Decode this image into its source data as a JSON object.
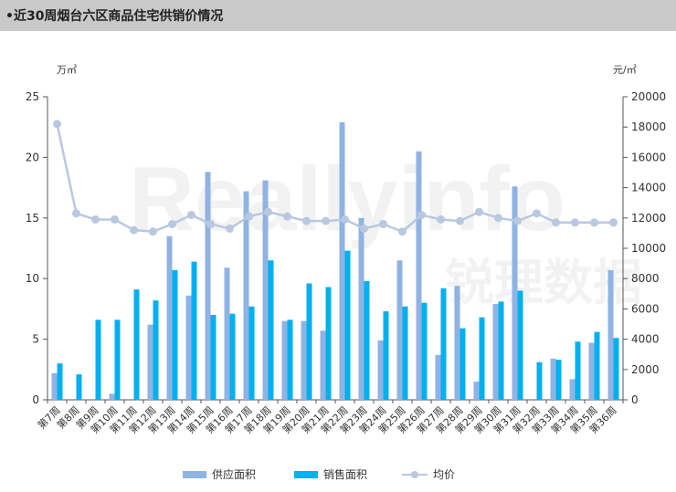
{
  "title": "•近30周烟台六区商品住宅供销价情况",
  "left_unit": "万㎡",
  "right_unit": "元/㎡",
  "watermark": "Reallyinfo 锐理数据",
  "colors": {
    "supply": "#8fb3e3",
    "sales": "#00b0f0",
    "price": "#b8c8e0",
    "axis": "#555555"
  },
  "chart_data": {
    "type": "bar",
    "categories": [
      "第7周",
      "第8周",
      "第9周",
      "第10周",
      "第11周",
      "第12周",
      "第13周",
      "第14周",
      "第15周",
      "第16周",
      "第17周",
      "第18周",
      "第19周",
      "第20周",
      "第21周",
      "第22周",
      "第23周",
      "第24周",
      "第25周",
      "第26周",
      "第27周",
      "第28周",
      "第29周",
      "第30周",
      "第31周",
      "第32周",
      "第33周",
      "第34周",
      "第35周",
      "第36周"
    ],
    "series": [
      {
        "name": "供应面积",
        "type": "bar",
        "axis": "left",
        "values": [
          2.2,
          0,
          0,
          0.5,
          0,
          6.2,
          13.5,
          8.6,
          18.8,
          10.9,
          17.2,
          18.1,
          6.5,
          6.5,
          5.7,
          22.9,
          15.0,
          4.9,
          11.5,
          20.5,
          3.7,
          9.4,
          1.5,
          7.9,
          17.6,
          0,
          3.4,
          1.7,
          4.7,
          10.7
        ]
      },
      {
        "name": "销售面积",
        "type": "bar",
        "axis": "left",
        "values": [
          3.0,
          2.1,
          6.6,
          6.6,
          9.1,
          8.2,
          10.7,
          11.4,
          7.0,
          7.1,
          7.7,
          11.5,
          6.6,
          9.6,
          9.3,
          12.3,
          9.8,
          7.3,
          7.7,
          8.0,
          9.2,
          5.9,
          6.8,
          8.1,
          9.0,
          3.1,
          3.3,
          4.8,
          5.6,
          5.1
        ]
      },
      {
        "name": "均价",
        "type": "line",
        "axis": "right",
        "values": [
          18200,
          12300,
          11900,
          11900,
          11200,
          11100,
          11600,
          12200,
          11600,
          11300,
          12100,
          12400,
          12100,
          11800,
          11800,
          11900,
          11300,
          11600,
          11100,
          12200,
          11900,
          11800,
          12400,
          12000,
          11800,
          12300,
          11700,
          11700,
          11700,
          11700
        ]
      }
    ],
    "y_left": {
      "min": 0,
      "max": 25,
      "ticks": [
        0,
        5,
        10,
        15,
        20,
        25
      ]
    },
    "y_right": {
      "min": 0,
      "max": 20000,
      "ticks": [
        0,
        2000,
        4000,
        6000,
        8000,
        10000,
        12000,
        14000,
        16000,
        18000,
        20000
      ]
    },
    "grid": false,
    "legend": "bottom"
  }
}
